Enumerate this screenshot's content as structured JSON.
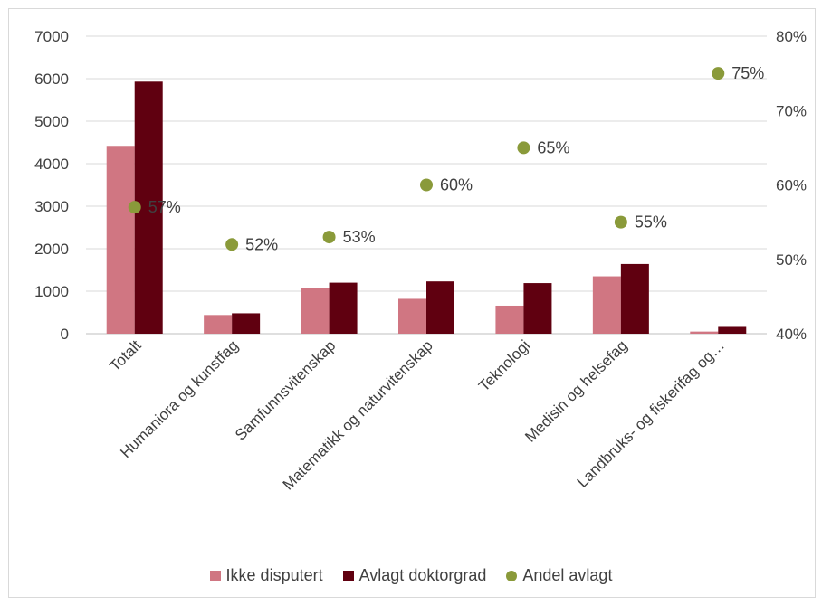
{
  "chart_data": {
    "type": "bar",
    "categories": [
      "Totalt",
      "Humaniora og kunstfag",
      "Samfunnsvitenskap",
      "Matematikk og naturvitenskap",
      "Teknologi",
      "Medisin og helsefag",
      "Landbruks- og fiskerifag og…"
    ],
    "series": [
      {
        "name": "Ikke disputert",
        "values": [
          4420,
          440,
          1080,
          820,
          660,
          1350,
          50
        ],
        "color": "#d07682"
      },
      {
        "name": "Avlagt doktorgrad",
        "values": [
          5930,
          480,
          1200,
          1230,
          1190,
          1640,
          160
        ],
        "color": "#600010"
      },
      {
        "name": "Andel avlagt",
        "axis": "secondary",
        "values": [
          0.57,
          0.52,
          0.53,
          0.6,
          0.65,
          0.55,
          0.75
        ],
        "labels": [
          "57%",
          "52%",
          "53%",
          "60%",
          "65%",
          "55%",
          "75%"
        ],
        "color": "#8a9a3a"
      }
    ],
    "ylim": [
      0,
      7000
    ],
    "yticks": [
      "0",
      "1000",
      "2000",
      "3000",
      "4000",
      "5000",
      "6000",
      "7000"
    ],
    "y2lim": [
      0.4,
      0.8
    ],
    "y2ticks": [
      "40%",
      "50%",
      "60%",
      "70%",
      "80%"
    ],
    "grid": true,
    "legend_position": "bottom"
  }
}
